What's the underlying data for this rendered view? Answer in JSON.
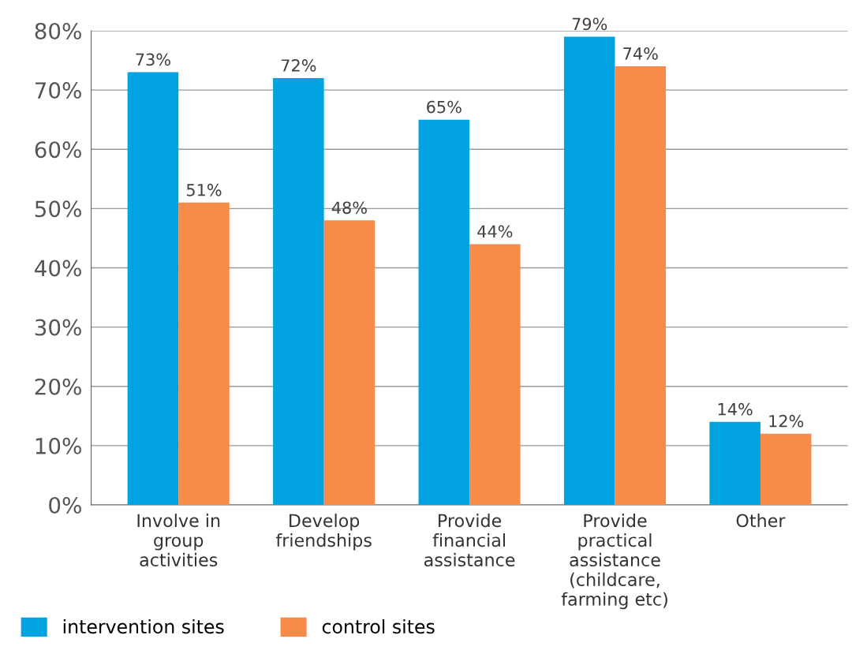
{
  "chart_data": {
    "type": "bar",
    "categories": [
      "Involve in\ngroup\nactivities",
      "Develop\nfriendships",
      "Provide\nfinancial\nassistance",
      "Provide\npractical\nassistance\n(childcare,\nfarming etc)",
      "Other"
    ],
    "series": [
      {
        "name": "intervention sites",
        "color": "#00a3e0",
        "values": [
          73,
          72,
          65,
          79,
          14
        ],
        "value_labels": [
          "73%",
          "72%",
          "65%",
          "79%",
          "14%"
        ]
      },
      {
        "name": "control sites",
        "color": "#f68b4a",
        "values": [
          51,
          48,
          44,
          74,
          12
        ],
        "value_labels": [
          "51%",
          "48%",
          "44%",
          "74%",
          "12%"
        ]
      }
    ],
    "ylim": [
      0,
      80
    ],
    "yticks": [
      {
        "value": 0,
        "label": "0%"
      },
      {
        "value": 10,
        "label": "10%"
      },
      {
        "value": 20,
        "label": "20%"
      },
      {
        "value": 30,
        "label": "30%"
      },
      {
        "value": 40,
        "label": "40%"
      },
      {
        "value": 50,
        "label": "50%"
      },
      {
        "value": 60,
        "label": "60%"
      },
      {
        "value": 70,
        "label": "70%"
      },
      {
        "value": 80,
        "label": "80%"
      }
    ],
    "grid": "y",
    "legend": "bottom left"
  }
}
